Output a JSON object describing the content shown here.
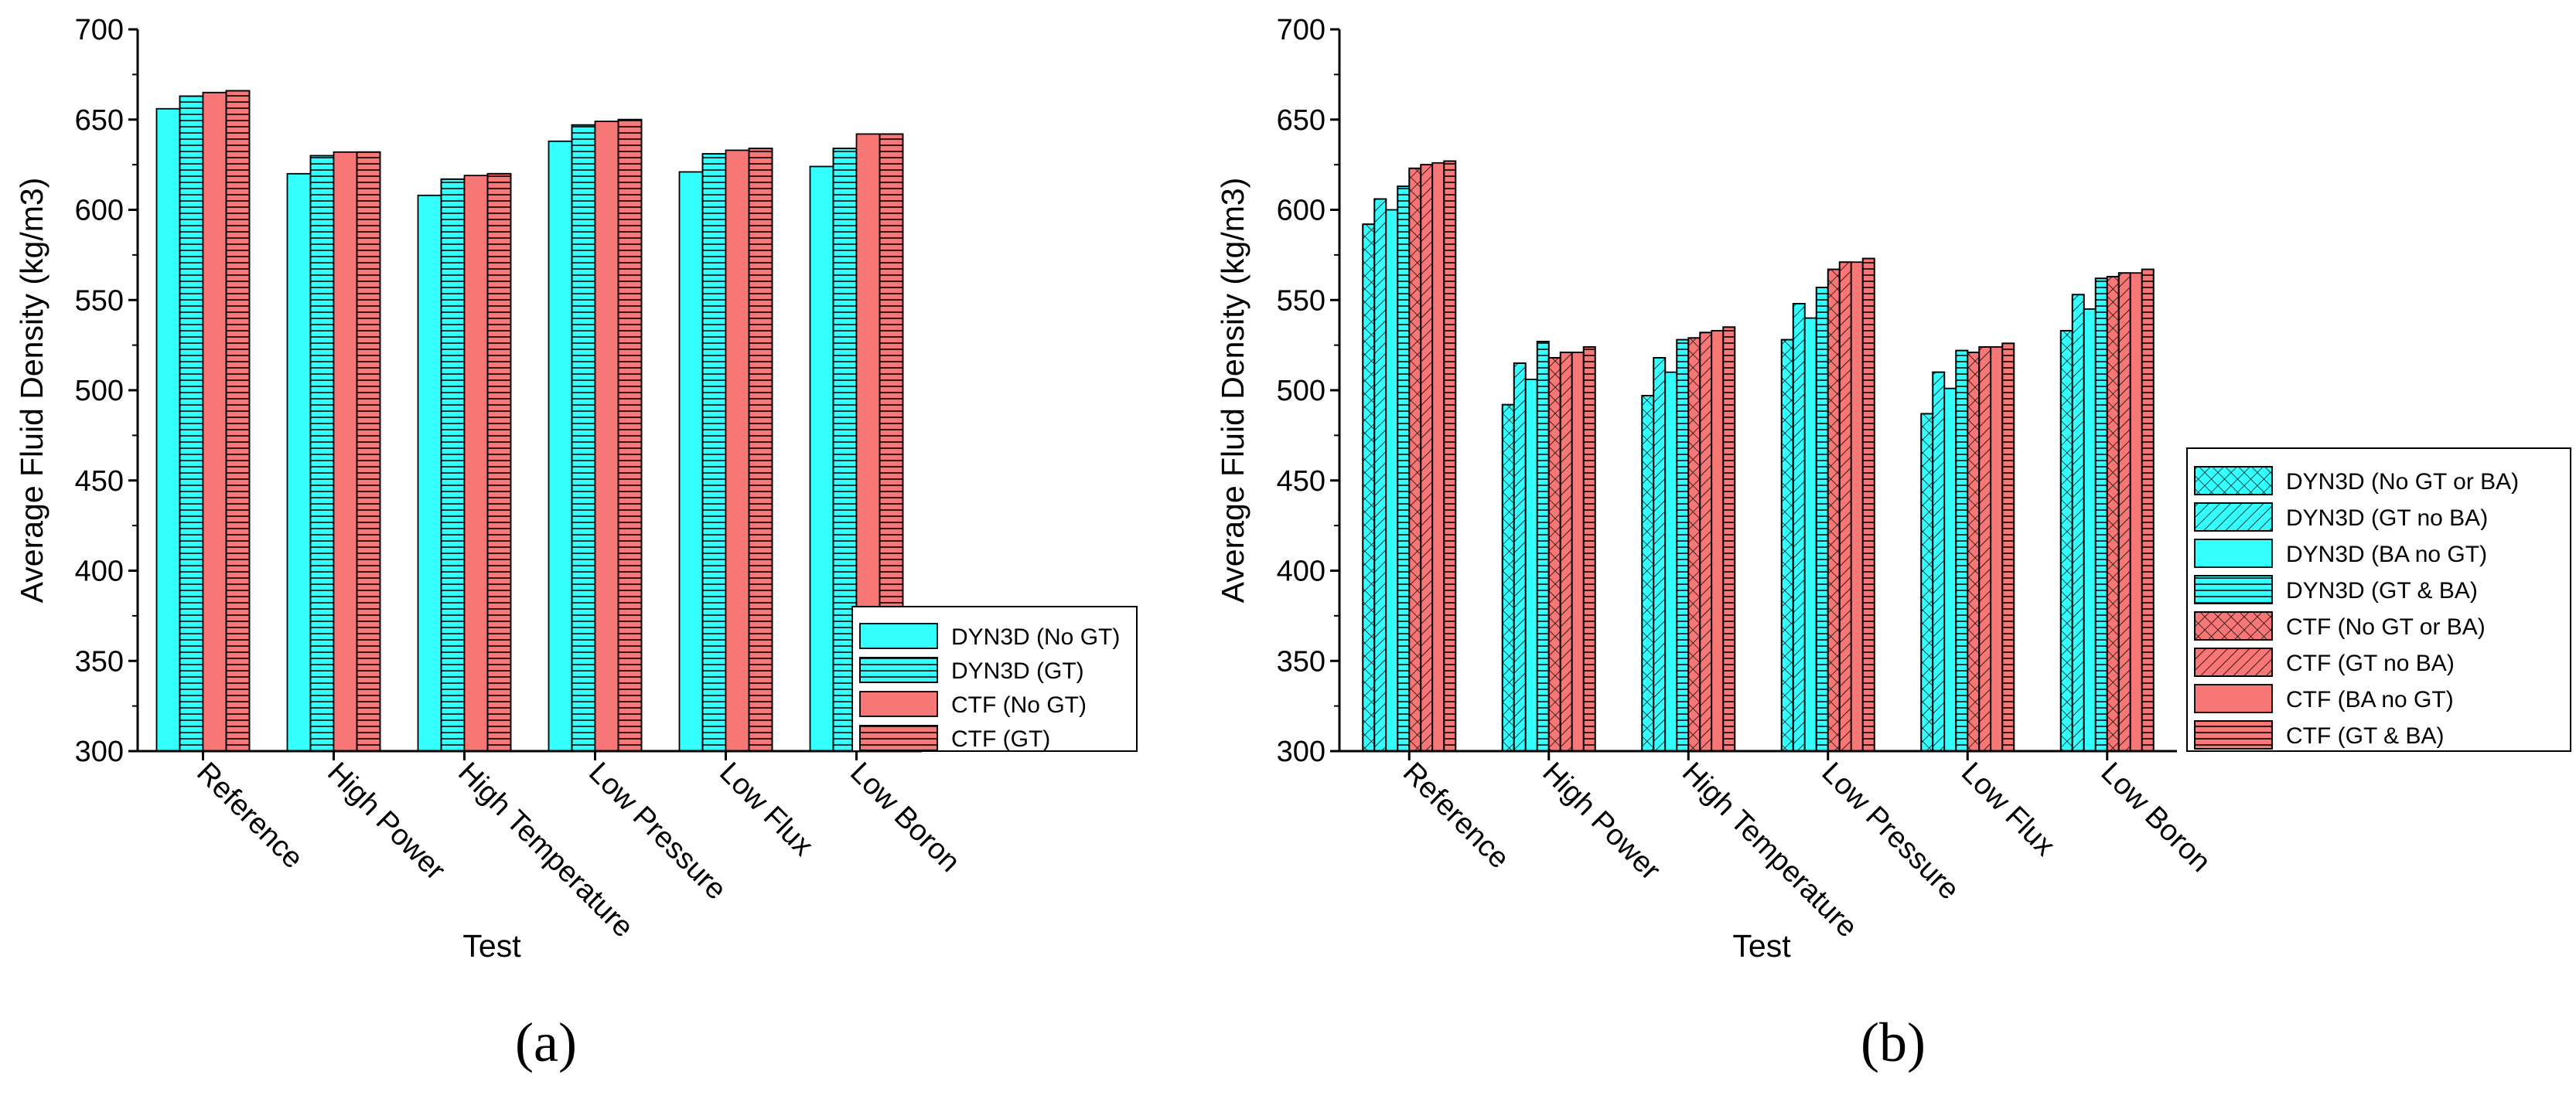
{
  "charts": [
    {
      "panel_label": "(a)",
      "legend_position": "lower-right",
      "ylabel": "Average Fluid Density (kg/m3)",
      "xlabel": "Test",
      "yticks": [
        "300",
        "350",
        "400",
        "450",
        "500",
        "550",
        "600",
        "650",
        "700"
      ]
    },
    {
      "panel_label": "(b)",
      "legend_position": "right",
      "ylabel": "Average Fluid Density (kg/m3)",
      "xlabel": "Test",
      "yticks": [
        "300",
        "350",
        "400",
        "450",
        "500",
        "550",
        "600",
        "650",
        "700"
      ]
    }
  ],
  "chart_data": [
    {
      "type": "bar",
      "title": "",
      "xlabel": "Test",
      "ylabel": "Average Fluid Density (kg/m3)",
      "ylim": [
        300,
        700
      ],
      "categories": [
        "Reference",
        "High Power",
        "High Temperature",
        "Low Pressure",
        "Low Flux",
        "Low Boron"
      ],
      "series": [
        {
          "name": "DYN3D (No GT)",
          "color": "#33ffff",
          "pattern": "none",
          "values": [
            656,
            620,
            608,
            638,
            621,
            624
          ]
        },
        {
          "name": "DYN3D (GT)",
          "color": "#33ffff",
          "pattern": "horizontal",
          "values": [
            663,
            630,
            617,
            647,
            631,
            634
          ]
        },
        {
          "name": "CTF (No GT)",
          "color": "#f77777",
          "pattern": "none",
          "values": [
            665,
            632,
            619,
            649,
            633,
            642
          ]
        },
        {
          "name": "CTF (GT)",
          "color": "#f77777",
          "pattern": "horizontal",
          "values": [
            666,
            632,
            620,
            650,
            634,
            642
          ]
        }
      ]
    },
    {
      "type": "bar",
      "title": "",
      "xlabel": "Test",
      "ylabel": "Average Fluid Density (kg/m3)",
      "ylim": [
        300,
        700
      ],
      "categories": [
        "Reference",
        "High Power",
        "High Temperature",
        "Low Pressure",
        "Low Flux",
        "Low Boron"
      ],
      "series": [
        {
          "name": "DYN3D (No GT or BA)",
          "color": "#33ffff",
          "pattern": "crosshatch",
          "values": [
            592,
            492,
            497,
            528,
            487,
            533
          ]
        },
        {
          "name": "DYN3D (GT no BA)",
          "color": "#33ffff",
          "pattern": "diagonal",
          "values": [
            606,
            515,
            518,
            548,
            510,
            553
          ]
        },
        {
          "name": "DYN3D (BA no GT)",
          "color": "#33ffff",
          "pattern": "none",
          "values": [
            600,
            506,
            510,
            540,
            501,
            545
          ]
        },
        {
          "name": "DYN3D (GT & BA)",
          "color": "#33ffff",
          "pattern": "horizontal",
          "values": [
            613,
            527,
            528,
            557,
            522,
            562
          ]
        },
        {
          "name": "CTF (No GT or BA)",
          "color": "#f77777",
          "pattern": "crosshatch",
          "values": [
            623,
            518,
            529,
            567,
            521,
            563
          ]
        },
        {
          "name": "CTF (GT no BA)",
          "color": "#f77777",
          "pattern": "diagonal",
          "values": [
            625,
            521,
            532,
            571,
            524,
            565
          ]
        },
        {
          "name": "CTF (BA no GT)",
          "color": "#f77777",
          "pattern": "none",
          "values": [
            626,
            521,
            533,
            571,
            524,
            565
          ]
        },
        {
          "name": "CTF (GT & BA)",
          "color": "#f77777",
          "pattern": "horizontal",
          "values": [
            627,
            524,
            535,
            573,
            526,
            567
          ]
        }
      ]
    }
  ]
}
